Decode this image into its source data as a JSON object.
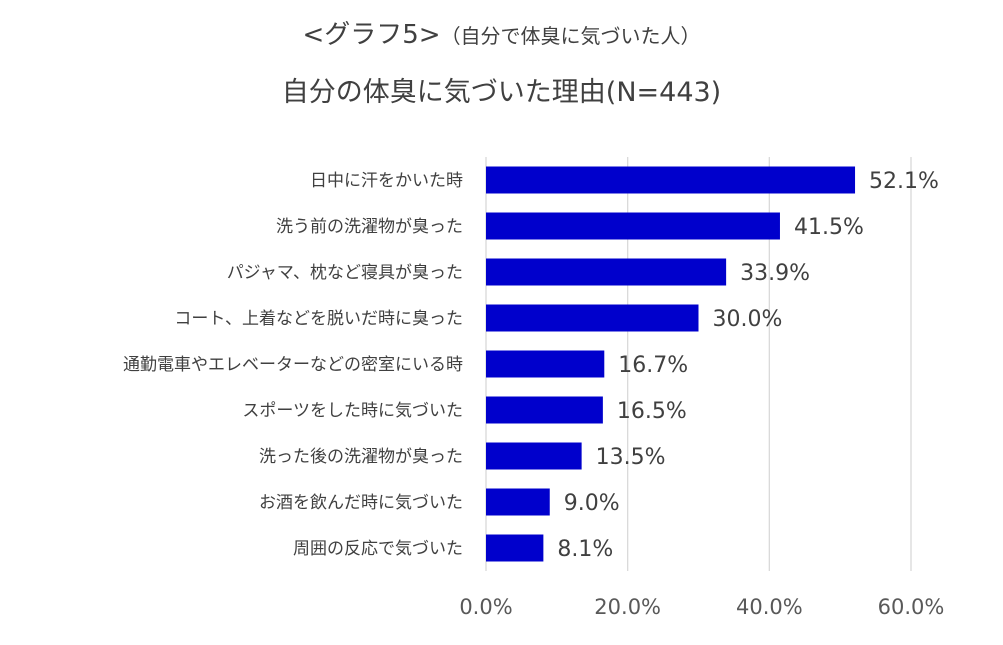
{
  "chart_data": {
    "type": "bar",
    "orientation": "horizontal",
    "title_main": "<グラフ5>",
    "title_note": "（自分で体臭に気づいた人）",
    "subtitle": "自分の体臭に気づいた理由(N=443)",
    "categories": [
      "日中に汗をかいた時",
      "洗う前の洗濯物が臭った",
      "パジャマ、枕など寝具が臭った",
      "コート、上着などを脱いだ時に臭った",
      "通勤電車やエレベーターなどの密室にいる時",
      "スポーツをした時に気づいた",
      "洗った後の洗濯物が臭った",
      "お酒を飲んだ時に気づいた",
      "周囲の反応で気づいた"
    ],
    "values": [
      52.1,
      41.5,
      33.9,
      30.0,
      16.7,
      16.5,
      13.5,
      9.0,
      8.1
    ],
    "value_labels": [
      "52.1%",
      "41.5%",
      "33.9%",
      "30.0%",
      "16.7%",
      "16.5%",
      "13.5%",
      "9.0%",
      "8.1%"
    ],
    "xlim": [
      0,
      60
    ],
    "xticks": [
      0,
      20,
      40,
      60
    ],
    "xtick_labels": [
      "0.0%",
      "20.0%",
      "40.0%",
      "60.0%"
    ],
    "grid": true,
    "legend": "none",
    "bar_color": "#0000CC",
    "grid_color": "#D9D9D9"
  }
}
